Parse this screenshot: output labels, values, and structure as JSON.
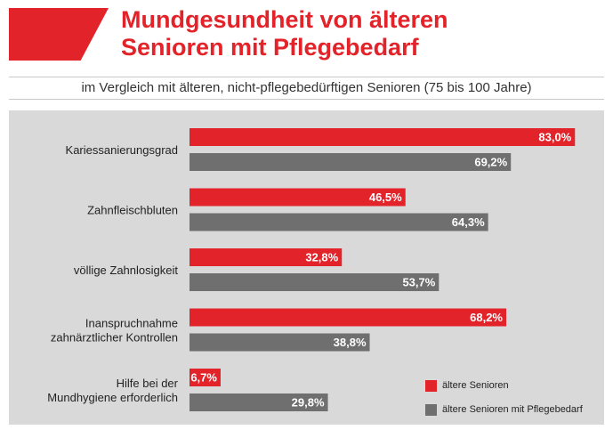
{
  "header": {
    "title_line1": "Mundgesundheit von älteren",
    "title_line2": "Senioren mit Pflegebedarf",
    "subtitle": "im Vergleich mit älteren, nicht-pflegebedürftigen Senioren (75 bis 100 Jahre)"
  },
  "colors": {
    "accent": "#e3232a",
    "series_a": "#e3232a",
    "series_b": "#6f6f6f",
    "panel": "#d9d9d9"
  },
  "chart_data": {
    "type": "bar",
    "orientation": "horizontal",
    "categories": [
      [
        "Kariessanierungsgrad"
      ],
      [
        "Zahnfleischbluten"
      ],
      [
        "völlige Zahnlosigkeit"
      ],
      [
        "Inanspruchnahme",
        "zahnärztlicher Kontrollen"
      ],
      [
        "Hilfe bei der",
        "Mundhygiene erforderlich"
      ]
    ],
    "series": [
      {
        "name": "ältere Senioren",
        "values": [
          83.0,
          46.5,
          32.8,
          68.2,
          6.7
        ],
        "labels": [
          "83,0%",
          "46,5%",
          "32,8%",
          "68,2%",
          "6,7%"
        ]
      },
      {
        "name": "ältere Senioren mit Pflegebedarf",
        "values": [
          69.2,
          64.3,
          53.7,
          38.8,
          29.8
        ],
        "labels": [
          "69,2%",
          "64,3%",
          "53,7%",
          "38,8%",
          "29,8%"
        ]
      }
    ],
    "xlim": [
      0,
      100
    ],
    "grid": false,
    "legend_position": "bottom-right"
  }
}
